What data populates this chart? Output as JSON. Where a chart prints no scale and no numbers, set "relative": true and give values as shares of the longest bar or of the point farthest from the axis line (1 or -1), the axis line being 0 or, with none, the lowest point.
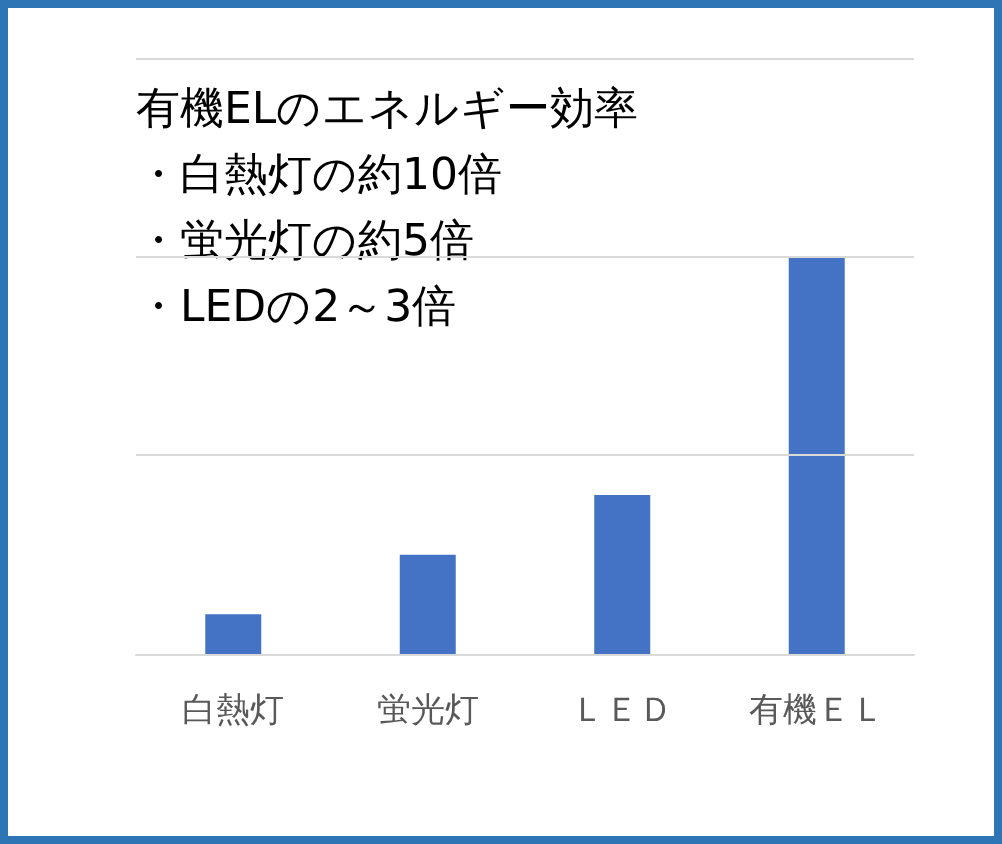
{
  "chart_data": {
    "type": "bar",
    "title": "有機ELのエネルギー効率",
    "annotations": [
      "・白熱灯の約10倍",
      "・蛍光灯の約5倍",
      "・LEDの2～3倍"
    ],
    "categories": [
      "白熱灯",
      "蛍光灯",
      "ＬＥＤ",
      "有機ＥＬ"
    ],
    "values": [
      0.1,
      0.25,
      0.4,
      1
    ],
    "color": "#4472c4",
    "relative": true,
    "ref_lines": [
      {
        "axis": "y",
        "value": 0.5,
        "color": "#d9d9d9"
      },
      {
        "axis": "y",
        "value": 1,
        "color": "#d9d9d9"
      },
      {
        "axis": "y",
        "value": 1.5,
        "color": "#d9d9d9"
      }
    ]
  }
}
